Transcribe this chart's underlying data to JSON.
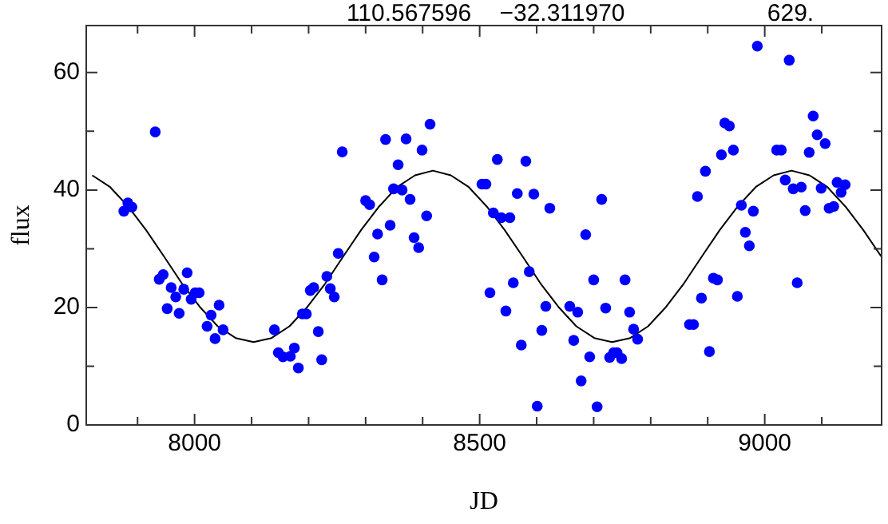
{
  "chart_data": {
    "type": "scatter",
    "annotations": [
      "110.567596",
      "−32.311970",
      "629."
    ],
    "xlabel": "JD",
    "ylabel": "flux",
    "xlim": [
      7810,
      9205
    ],
    "ylim": [
      0,
      68
    ],
    "xticks": [
      {
        "value": 7900,
        "label": null
      },
      8000,
      {
        "value": 8100,
        "label": null
      },
      {
        "value": 8200,
        "label": null
      },
      {
        "value": 8300,
        "label": null
      },
      {
        "value": 8400,
        "label": null
      },
      8500,
      {
        "value": 8600,
        "label": null
      },
      {
        "value": 8700,
        "label": null
      },
      {
        "value": 8800,
        "label": null
      },
      {
        "value": 8900,
        "label": null
      },
      9000,
      {
        "value": 9100,
        "label": null
      }
    ],
    "yticks": [
      0,
      {
        "value": 10,
        "label": null
      },
      20,
      {
        "value": 30,
        "label": null
      },
      40,
      {
        "value": 50,
        "label": null
      },
      60
    ],
    "series": [
      {
        "type": "scatter",
        "marker": "circle",
        "color": "#0000ff",
        "x": [
          7876,
          7883,
          7890,
          7931,
          7938,
          7945,
          7952,
          7959,
          7967,
          7973,
          7981,
          7987,
          7994,
          8001,
          8008,
          8022,
          8029,
          8036,
          8043,
          8050,
          8140,
          8147,
          8155,
          8168,
          8175,
          8182,
          8189,
          8196,
          8203,
          8209,
          8217,
          8223,
          8232,
          8238,
          8245,
          8252,
          8259,
          8300,
          8307,
          8315,
          8321,
          8329,
          8335,
          8343,
          8349,
          8357,
          8364,
          8371,
          8378,
          8385,
          8393,
          8399,
          8407,
          8413,
          8504,
          8511,
          8518,
          8524,
          8531,
          8538,
          8546,
          8553,
          8559,
          8566,
          8573,
          8581,
          8587,
          8595,
          8601,
          8609,
          8616,
          8623,
          8658,
          8665,
          8672,
          8678,
          8686,
          8693,
          8700,
          8706,
          8714,
          8721,
          8728,
          8735,
          8741,
          8749,
          8755,
          8763,
          8770,
          8777,
          8868,
          8875,
          8882,
          8889,
          8896,
          8903,
          8910,
          8917,
          8924,
          8930,
          8938,
          8945,
          8952,
          8959,
          8966,
          8973,
          8980,
          8987,
          9021,
          9029,
          9036,
          9043,
          9050,
          9057,
          9064,
          9071,
          9078,
          9085,
          9092,
          9099,
          9106,
          9113,
          9121,
          9127,
          9134,
          9141
        ],
        "values": [
          36.4,
          37.8,
          37.1,
          49.9,
          24.8,
          25.6,
          19.8,
          23.4,
          21.8,
          19.0,
          23.1,
          25.9,
          21.4,
          22.5,
          22.5,
          16.8,
          18.7,
          14.7,
          20.4,
          16.2,
          16.2,
          12.3,
          11.6,
          11.7,
          13.1,
          9.7,
          18.9,
          18.9,
          22.9,
          23.4,
          15.9,
          11.1,
          25.3,
          23.2,
          21.8,
          29.2,
          46.5,
          38.2,
          37.5,
          28.6,
          32.5,
          24.7,
          48.6,
          34.0,
          40.2,
          44.3,
          40.0,
          48.7,
          38.4,
          31.9,
          30.2,
          46.8,
          35.6,
          51.2,
          41.0,
          41.0,
          22.5,
          36.1,
          45.2,
          35.3,
          19.4,
          35.3,
          24.2,
          39.4,
          13.6,
          44.9,
          26.1,
          39.3,
          3.2,
          16.1,
          20.2,
          36.9,
          20.2,
          14.4,
          19.2,
          7.5,
          32.4,
          11.6,
          24.7,
          3.1,
          38.4,
          19.9,
          11.5,
          12.3,
          12.3,
          11.3,
          24.7,
          19.2,
          16.3,
          14.6,
          17.1,
          17.1,
          38.9,
          21.6,
          43.2,
          12.5,
          25.0,
          24.7,
          46.0,
          51.4,
          50.9,
          46.8,
          21.9,
          37.4,
          32.8,
          30.5,
          36.4,
          64.5,
          46.8,
          46.8,
          41.7,
          62.1,
          40.2,
          24.2,
          40.5,
          36.5,
          46.4,
          52.6,
          49.4,
          40.3,
          47.9,
          36.9,
          37.2,
          41.3,
          39.6,
          40.9
        ]
      },
      {
        "type": "line",
        "marker": "none",
        "line_style": "solid",
        "color": "#000000",
        "x": [
          7820.5,
          7851.9,
          7883.4,
          7914.8,
          7946.3,
          7977.7,
          8009.2,
          8040.6,
          8072.1,
          8103.5,
          8135.0,
          8166.4,
          8197.9,
          8229.3,
          8260.8,
          8292.2,
          8323.7,
          8355.1,
          8386.6,
          8418,
          8449.5,
          8480.9,
          8512.4,
          8543.8,
          8575.3,
          8606.7,
          8638.2,
          8669.6,
          8701.1,
          8732.5,
          8764.0,
          8795.4,
          8826.9,
          8858.3,
          8889.8,
          8921.2,
          8952.7,
          8984.1,
          9015.6,
          9047,
          9078.5,
          9109.9,
          9141.4,
          9172.8,
          9204.3
        ],
        "values": [
          42.5,
          40.5,
          37.2,
          33.2,
          28.7,
          24.1,
          20.1,
          16.8,
          14.8,
          14.1,
          14.8,
          16.8,
          20.1,
          24.1,
          28.7,
          33.2,
          37.2,
          40.5,
          42.5,
          43.3,
          42.5,
          40.5,
          37.2,
          33.2,
          28.7,
          24.1,
          20.1,
          16.8,
          14.8,
          14.1,
          14.8,
          16.8,
          20.1,
          24.1,
          28.7,
          33.2,
          37.2,
          40.5,
          42.5,
          43.3,
          42.5,
          40.5,
          37.2,
          33.2,
          28.7
        ]
      }
    ]
  }
}
